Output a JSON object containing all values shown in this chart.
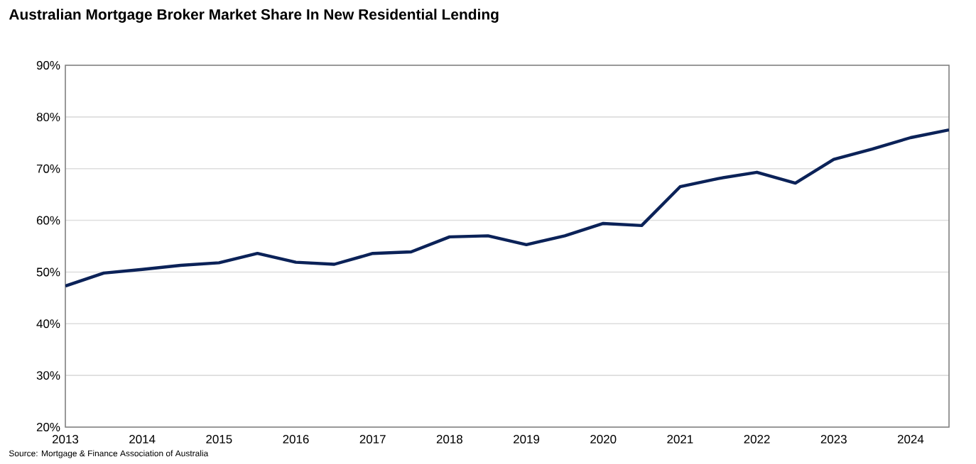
{
  "chart_data": {
    "type": "line",
    "title": "Australian Mortgage Broker Market Share In New Residential Lending",
    "x": [
      2013,
      2013.5,
      2014,
      2014.5,
      2015,
      2015.5,
      2016,
      2016.5,
      2017,
      2017.5,
      2018,
      2018.5,
      2019,
      2019.5,
      2020,
      2020.5,
      2021,
      2021.5,
      2022,
      2022.5,
      2023,
      2023.5,
      2024,
      2024.5
    ],
    "series": [
      {
        "color": "#0b2258",
        "values": [
          47.3,
          49.8,
          50.5,
          51.3,
          51.8,
          53.6,
          51.9,
          51.5,
          53.6,
          53.9,
          56.8,
          57.0,
          55.3,
          57.0,
          59.4,
          59.0,
          66.5,
          68.1,
          69.3,
          67.2,
          71.8,
          73.8,
          76.0,
          77.5
        ]
      }
    ],
    "xlim": [
      2013,
      2024.5
    ],
    "xticks": [
      2013,
      2014,
      2015,
      2016,
      2017,
      2018,
      2019,
      2020,
      2021,
      2022,
      2023,
      2024
    ],
    "ylim": [
      20,
      90
    ],
    "yticks": [
      {
        "value": 20,
        "label": "20%"
      },
      {
        "value": 30,
        "label": "30%"
      },
      {
        "value": 40,
        "label": "40%"
      },
      {
        "value": 50,
        "label": "50%"
      },
      {
        "value": 60,
        "label": "60%"
      },
      {
        "value": 70,
        "label": "70%"
      },
      {
        "value": 80,
        "label": "80%"
      },
      {
        "value": 90,
        "label": "90%"
      }
    ],
    "grid": "y",
    "marker": "none",
    "line_style": "solid",
    "annotations": [
      "Source: Mortgage & Finance Association of Australia"
    ]
  }
}
